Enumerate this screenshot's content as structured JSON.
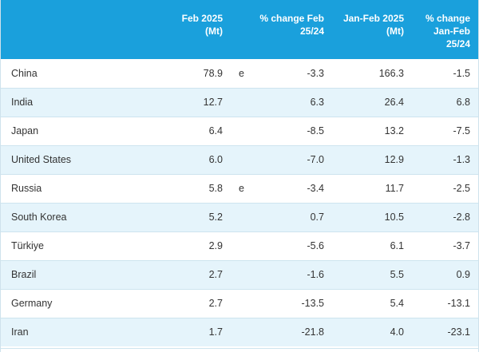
{
  "header": {
    "col_country": "",
    "col_feb": [
      "Feb 2025",
      "(Mt)"
    ],
    "col_pct_feb": [
      "% change Feb",
      "25/24"
    ],
    "col_janfeb": [
      "Jan-Feb 2025",
      "(Mt)"
    ],
    "col_pct_janfeb": [
      "% change",
      "Jan-Feb",
      "25/24"
    ]
  },
  "rows": [
    {
      "country": "China",
      "feb": "78.9",
      "flag": "e",
      "pct_feb": "-3.3",
      "janfeb": "166.3",
      "pct_janfeb": "-1.5"
    },
    {
      "country": "India",
      "feb": "12.7",
      "flag": "",
      "pct_feb": "6.3",
      "janfeb": "26.4",
      "pct_janfeb": "6.8"
    },
    {
      "country": "Japan",
      "feb": "6.4",
      "flag": "",
      "pct_feb": "-8.5",
      "janfeb": "13.2",
      "pct_janfeb": "-7.5"
    },
    {
      "country": "United States",
      "feb": "6.0",
      "flag": "",
      "pct_feb": "-7.0",
      "janfeb": "12.9",
      "pct_janfeb": "-1.3"
    },
    {
      "country": "Russia",
      "feb": "5.8",
      "flag": "e",
      "pct_feb": "-3.4",
      "janfeb": "11.7",
      "pct_janfeb": "-2.5"
    },
    {
      "country": "South Korea",
      "feb": "5.2",
      "flag": "",
      "pct_feb": "0.7",
      "janfeb": "10.5",
      "pct_janfeb": "-2.8"
    },
    {
      "country": "Türkiye",
      "feb": "2.9",
      "flag": "",
      "pct_feb": "-5.6",
      "janfeb": "6.1",
      "pct_janfeb": "-3.7"
    },
    {
      "country": "Brazil",
      "feb": "2.7",
      "flag": "",
      "pct_feb": "-1.6",
      "janfeb": "5.5",
      "pct_janfeb": "0.9"
    },
    {
      "country": "Germany",
      "feb": "2.7",
      "flag": "",
      "pct_feb": "-13.5",
      "janfeb": "5.4",
      "pct_janfeb": "-13.1"
    },
    {
      "country": "Iran",
      "feb": "1.7",
      "flag": "",
      "pct_feb": "-21.8",
      "janfeb": "4.0",
      "pct_janfeb": "-23.1"
    }
  ],
  "colors": {
    "header_bg": "#1aa0dc",
    "header_text": "#ffffff",
    "stripe": "#e5f4fb",
    "row_border": "#cde4ef",
    "text": "#333333"
  }
}
